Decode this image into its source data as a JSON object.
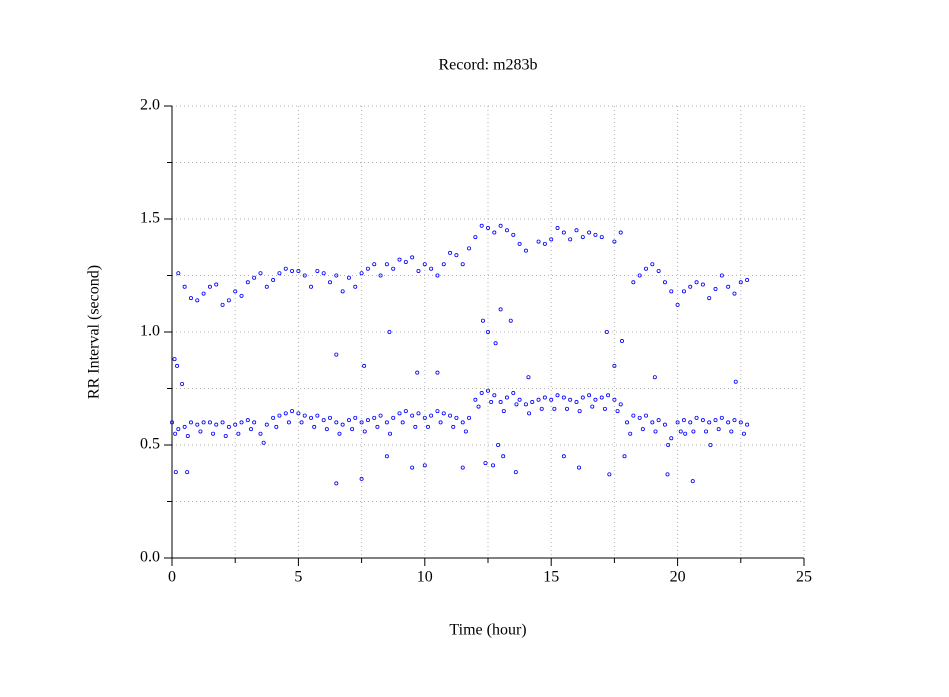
{
  "chart_data": {
    "type": "scatter",
    "title": "Record:  m283b",
    "x_label": "Time (hour)",
    "y_label": "RR Interval (second)",
    "color": "#0000ff",
    "grid": true,
    "xlim": [
      0,
      25
    ],
    "xticks": [
      0,
      5,
      10,
      15,
      20,
      25
    ],
    "xminorticks": [
      2.5,
      7.5,
      12.5,
      17.5,
      22.5
    ],
    "ylim": [
      0,
      2
    ],
    "yticks": [
      {
        "value": 0,
        "label": "0.0"
      },
      {
        "value": 0.5,
        "label": "0.5"
      },
      {
        "value": 1,
        "label": "1.0"
      },
      {
        "value": 1.5,
        "label": "1.5"
      },
      {
        "value": 2,
        "label": "2.0"
      }
    ],
    "yminorticks": [
      0.25,
      0.75,
      1.25,
      1.75
    ],
    "x": [
      0,
      0.25,
      0.5,
      0.75,
      1,
      1.25,
      1.5,
      1.75,
      2,
      2.25,
      2.5,
      2.75,
      3,
      3.25,
      3.5,
      3.75,
      4,
      4.25,
      4.5,
      4.75,
      5,
      5.25,
      5.5,
      5.75,
      6,
      6.25,
      6.5,
      6.75,
      7,
      7.25,
      7.5,
      7.75,
      8,
      8.25,
      8.5,
      8.75,
      9,
      9.25,
      9.5,
      9.75,
      10,
      10.25,
      10.5,
      10.75,
      11,
      11.25,
      11.5,
      11.75,
      12,
      12.25,
      12.5,
      12.75,
      13,
      13.25,
      13.5,
      13.75,
      14,
      14.25,
      14.5,
      14.75,
      15,
      15.25,
      15.5,
      15.75,
      16,
      16.25,
      16.5,
      16.75,
      17,
      17.25,
      17.5,
      17.75,
      18,
      18.25,
      18.5,
      18.75,
      19,
      19.25,
      19.5,
      19.75,
      20,
      20.25,
      20.5,
      20.75,
      21,
      21.25,
      21.5,
      21.75,
      22,
      22.25,
      22.5,
      22.75,
      0.125,
      0.625,
      1.125,
      1.625,
      2.125,
      2.625,
      3.125,
      3.625,
      4.125,
      4.625,
      5.125,
      5.625,
      6.125,
      6.625,
      7.125,
      7.625,
      8.125,
      8.625,
      9.125,
      9.625,
      10.125,
      10.625,
      11.125,
      11.625,
      12.125,
      12.625,
      13.125,
      13.625,
      14.125,
      14.625,
      15.125,
      15.625,
      16.125,
      16.625,
      17.125,
      17.625,
      18.125,
      18.625,
      19.125,
      19.625,
      20.125,
      20.625,
      21.125,
      21.625,
      22.125,
      22.625,
      0.25,
      0.5,
      0.75,
      1,
      1.25,
      1.5,
      1.75,
      2,
      2.25,
      2.5,
      2.75,
      3,
      3.25,
      3.5,
      3.75,
      4,
      4.25,
      4.5,
      4.75,
      5,
      5.25,
      5.5,
      5.75,
      6,
      6.25,
      6.5,
      6.75,
      7,
      7.25,
      7.5,
      7.75,
      8,
      8.25,
      8.5,
      8.75,
      9,
      9.25,
      9.5,
      9.75,
      10,
      10.25,
      10.5,
      10.75,
      11,
      11.25,
      11.5,
      11.75,
      12,
      12.25,
      12.5,
      12.75,
      13,
      13.25,
      13.5,
      13.75,
      14,
      14.5,
      14.75,
      15,
      15.25,
      15.5,
      15.75,
      16,
      16.25,
      16.5,
      16.75,
      17,
      17.5,
      17.75,
      18.25,
      18.5,
      18.75,
      19,
      19.25,
      19.5,
      19.75,
      20,
      20.25,
      20.5,
      20.75,
      21,
      21.25,
      21.5,
      21.75,
      22,
      22.25,
      22.5,
      22.75,
      0.1,
      0.2,
      0.15,
      0.6,
      0.4,
      6.5,
      6.5,
      7.5,
      8.5,
      9.5,
      10,
      11.5,
      12.3,
      12.5,
      12.8,
      13,
      13.4,
      12.4,
      12.7,
      13.1,
      12.9,
      13.6,
      14.1,
      15.5,
      16.1,
      17.3,
      17.5,
      17.8,
      17.2,
      17.9,
      19.6,
      20.3,
      21.3,
      22.3,
      9.7,
      10.5,
      8.6,
      7.6,
      19.1,
      20.6
    ],
    "values": [
      0.6,
      0.57,
      0.58,
      0.6,
      0.59,
      0.6,
      0.6,
      0.59,
      0.6,
      0.58,
      0.59,
      0.6,
      0.61,
      0.6,
      0.55,
      0.59,
      0.62,
      0.63,
      0.64,
      0.65,
      0.64,
      0.63,
      0.62,
      0.63,
      0.61,
      0.62,
      0.6,
      0.59,
      0.61,
      0.62,
      0.6,
      0.61,
      0.62,
      0.63,
      0.6,
      0.62,
      0.64,
      0.65,
      0.63,
      0.64,
      0.62,
      0.63,
      0.65,
      0.64,
      0.63,
      0.62,
      0.6,
      0.62,
      0.7,
      0.73,
      0.74,
      0.72,
      0.69,
      0.71,
      0.73,
      0.7,
      0.68,
      0.69,
      0.7,
      0.71,
      0.7,
      0.72,
      0.71,
      0.7,
      0.69,
      0.71,
      0.72,
      0.7,
      0.71,
      0.72,
      0.7,
      0.68,
      0.6,
      0.63,
      0.62,
      0.63,
      0.6,
      0.61,
      0.59,
      0.53,
      0.6,
      0.61,
      0.6,
      0.62,
      0.61,
      0.6,
      0.61,
      0.62,
      0.6,
      0.61,
      0.6,
      0.59,
      0.55,
      0.54,
      0.56,
      0.55,
      0.54,
      0.55,
      0.57,
      0.51,
      0.58,
      0.6,
      0.6,
      0.58,
      0.57,
      0.55,
      0.57,
      0.56,
      0.58,
      0.55,
      0.6,
      0.58,
      0.58,
      0.6,
      0.58,
      0.56,
      0.67,
      0.69,
      0.65,
      0.68,
      0.64,
      0.66,
      0.66,
      0.66,
      0.65,
      0.67,
      0.66,
      0.65,
      0.55,
      0.57,
      0.56,
      0.5,
      0.56,
      0.56,
      0.56,
      0.57,
      0.56,
      0.55,
      1.26,
      1.2,
      1.15,
      1.14,
      1.17,
      1.2,
      1.21,
      1.12,
      1.14,
      1.18,
      1.16,
      1.22,
      1.24,
      1.26,
      1.2,
      1.23,
      1.26,
      1.28,
      1.27,
      1.27,
      1.25,
      1.2,
      1.27,
      1.26,
      1.22,
      1.25,
      1.18,
      1.24,
      1.2,
      1.26,
      1.28,
      1.3,
      1.25,
      1.3,
      1.28,
      1.32,
      1.31,
      1.33,
      1.27,
      1.3,
      1.28,
      1.25,
      1.3,
      1.35,
      1.34,
      1.3,
      1.37,
      1.42,
      1.47,
      1.46,
      1.44,
      1.47,
      1.45,
      1.43,
      1.39,
      1.36,
      1.4,
      1.39,
      1.41,
      1.46,
      1.44,
      1.41,
      1.45,
      1.42,
      1.44,
      1.43,
      1.42,
      1.4,
      1.44,
      1.22,
      1.25,
      1.28,
      1.3,
      1.27,
      1.22,
      1.18,
      1.12,
      1.18,
      1.2,
      1.22,
      1.21,
      1.15,
      1.19,
      1.25,
      1.2,
      1.17,
      1.22,
      1.23,
      0.88,
      0.85,
      0.38,
      0.38,
      0.77,
      0.9,
      0.33,
      0.35,
      0.45,
      0.4,
      0.41,
      0.4,
      1.05,
      1.0,
      0.95,
      1.1,
      1.05,
      0.42,
      0.41,
      0.45,
      0.5,
      0.38,
      0.8,
      0.45,
      0.4,
      0.37,
      0.85,
      0.96,
      1.0,
      0.45,
      0.37,
      0.55,
      0.5,
      0.78,
      0.82,
      0.82,
      1.0,
      0.85,
      0.8,
      0.34
    ]
  }
}
